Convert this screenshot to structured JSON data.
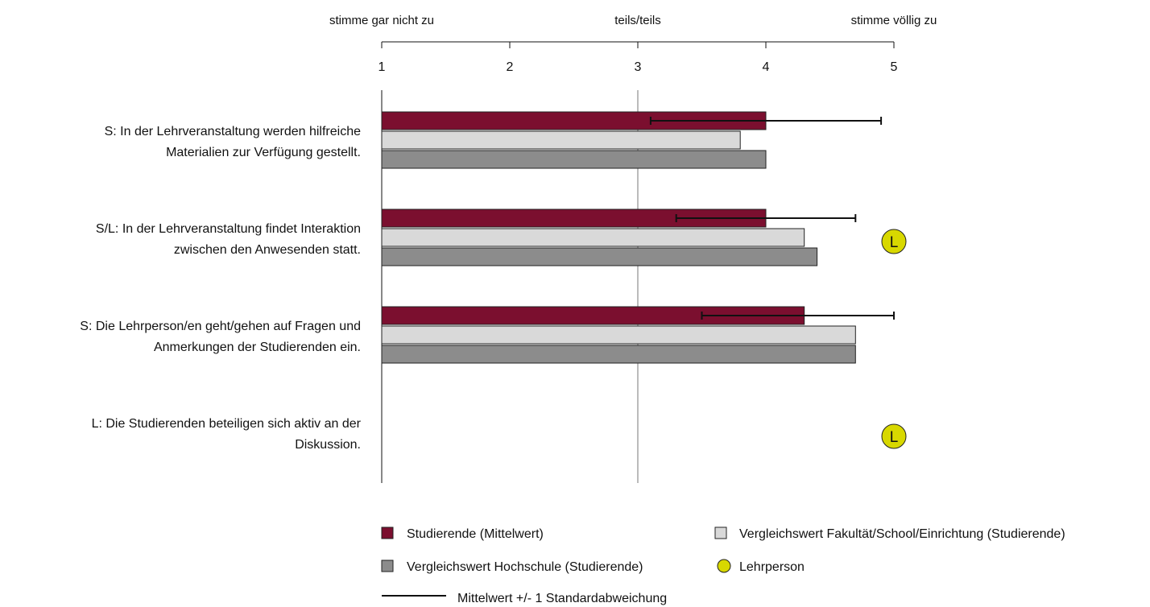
{
  "chart_data": {
    "type": "bar",
    "orientation": "horizontal",
    "scale": {
      "min": 1,
      "max": 5,
      "ticks": [
        1,
        2,
        3,
        4,
        5
      ],
      "anchors": [
        {
          "value": 1,
          "label": "stimme gar nicht zu"
        },
        {
          "value": 3,
          "label": "teils/teils"
        },
        {
          "value": 5,
          "label": "stimme völlig zu"
        }
      ],
      "reference_line": 3
    },
    "categories": [
      {
        "label_lines": [
          "S: In der Lehrveranstaltung werden hilfreiche",
          "Materialien zur Verfügung gestellt."
        ],
        "studierende": 4.0,
        "sd_low": 3.1,
        "sd_high": 4.9,
        "fakultaet": 3.8,
        "hochschule": 4.0,
        "lehrperson": null
      },
      {
        "label_lines": [
          "S/L: In der Lehrveranstaltung findet Interaktion",
          "zwischen den Anwesenden statt."
        ],
        "studierende": 4.0,
        "sd_low": 3.3,
        "sd_high": 4.7,
        "fakultaet": 4.3,
        "hochschule": 4.4,
        "lehrperson": 5.0
      },
      {
        "label_lines": [
          "S: Die Lehrperson/en geht/gehen auf Fragen und",
          "Anmerkungen der Studierenden ein."
        ],
        "studierende": 4.3,
        "sd_low": 3.5,
        "sd_high": 5.0,
        "fakultaet": 4.7,
        "hochschule": 4.7,
        "lehrperson": null
      },
      {
        "label_lines": [
          "L: Die Studierenden beteiligen sich aktiv an der",
          "Diskussion."
        ],
        "studierende": null,
        "sd_low": null,
        "sd_high": null,
        "fakultaet": null,
        "hochschule": null,
        "lehrperson": 5.0
      }
    ],
    "lehrperson_marker_letter": "L",
    "legend": {
      "studierende": "Studierende (Mittelwert)",
      "fakultaet": "Vergleichswert Fakultät/School/Einrichtung (Studierende)",
      "hochschule": "Vergleichswert Hochschule (Studierende)",
      "lehrperson": "Lehrperson",
      "errorbar": "Mittelwert +/- 1 Standardabweichung"
    },
    "colors": {
      "studierende": "#7B0F2F",
      "fakultaet": "#D9D9D9",
      "hochschule": "#8C8C8C",
      "lehrperson": "#D8D800",
      "reference_line": "#BBBBBB",
      "axis": "#111111"
    }
  }
}
